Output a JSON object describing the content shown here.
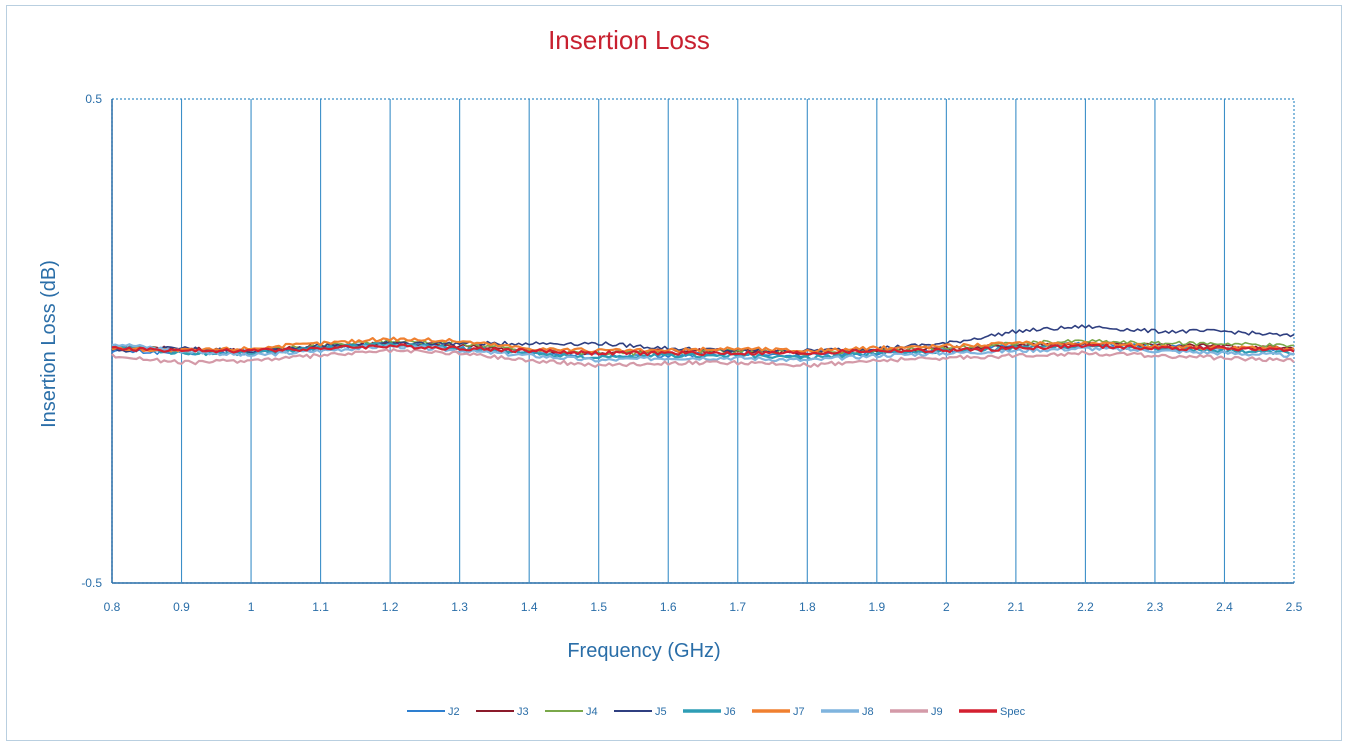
{
  "chart_data": {
    "type": "line",
    "title": "Insertion Loss",
    "xlabel": "Frequency (GHz)",
    "ylabel": "Insertion Loss (dB)",
    "xlim": [
      0.8,
      2.5
    ],
    "ylim": [
      -0.5,
      0.5
    ],
    "x_ticks": [
      "0.8",
      "0.9",
      "1",
      "1.1",
      "1.2",
      "1.3",
      "1.4",
      "1.5",
      "1.6",
      "1.7",
      "1.8",
      "1.9",
      "2",
      "2.1",
      "2.2",
      "2.3",
      "2.4",
      "2.5"
    ],
    "y_ticks": [
      "0.5",
      "-0.5"
    ],
    "grid": "vertical",
    "legend_position": "bottom",
    "x": [
      0.8,
      0.9,
      1.0,
      1.1,
      1.2,
      1.3,
      1.4,
      1.5,
      1.6,
      1.7,
      1.8,
      1.9,
      2.0,
      2.1,
      2.2,
      2.3,
      2.4,
      2.5
    ],
    "series": [
      {
        "name": "J2",
        "color": "#2e7fd0",
        "values": [
          -0.02,
          -0.025,
          -0.025,
          -0.015,
          -0.005,
          -0.015,
          -0.025,
          -0.03,
          -0.03,
          -0.025,
          -0.03,
          -0.025,
          -0.02,
          -0.01,
          -0.005,
          -0.01,
          -0.015,
          -0.02
        ]
      },
      {
        "name": "J3",
        "color": "#8b1a2a",
        "values": [
          -0.015,
          -0.015,
          -0.02,
          -0.01,
          -0.005,
          -0.01,
          -0.02,
          -0.025,
          -0.02,
          -0.02,
          -0.025,
          -0.02,
          -0.015,
          -0.01,
          -0.005,
          -0.01,
          -0.01,
          -0.015
        ]
      },
      {
        "name": "J4",
        "color": "#7aa84a",
        "values": [
          -0.01,
          -0.02,
          -0.02,
          -0.01,
          0.0,
          -0.005,
          -0.02,
          -0.025,
          -0.025,
          -0.02,
          -0.025,
          -0.02,
          -0.015,
          -0.005,
          0.0,
          -0.005,
          -0.005,
          -0.01
        ]
      },
      {
        "name": "J5",
        "color": "#2f3f80",
        "values": [
          -0.02,
          -0.015,
          -0.02,
          -0.01,
          -0.005,
          -0.005,
          -0.005,
          -0.005,
          -0.015,
          -0.02,
          -0.02,
          -0.015,
          -0.005,
          0.02,
          0.03,
          0.02,
          0.02,
          0.01
        ]
      },
      {
        "name": "J6",
        "color": "#2e9db5",
        "values": [
          -0.01,
          -0.025,
          -0.025,
          -0.015,
          -0.005,
          -0.015,
          -0.025,
          -0.035,
          -0.03,
          -0.03,
          -0.035,
          -0.025,
          -0.02,
          -0.015,
          -0.01,
          -0.015,
          -0.02,
          -0.025
        ]
      },
      {
        "name": "J7",
        "color": "#f08030",
        "values": [
          -0.015,
          -0.02,
          -0.015,
          -0.005,
          0.005,
          0.0,
          -0.015,
          -0.02,
          -0.02,
          -0.015,
          -0.02,
          -0.015,
          -0.01,
          -0.005,
          -0.005,
          -0.01,
          -0.015,
          -0.015
        ]
      },
      {
        "name": "J8",
        "color": "#7fb4de",
        "values": [
          -0.005,
          -0.02,
          -0.03,
          -0.02,
          -0.01,
          -0.02,
          -0.03,
          -0.04,
          -0.035,
          -0.035,
          -0.04,
          -0.03,
          -0.025,
          -0.02,
          -0.015,
          -0.02,
          -0.025,
          -0.03
        ]
      },
      {
        "name": "J9",
        "color": "#d49aa8",
        "values": [
          -0.03,
          -0.045,
          -0.04,
          -0.03,
          -0.02,
          -0.025,
          -0.04,
          -0.05,
          -0.045,
          -0.045,
          -0.05,
          -0.04,
          -0.035,
          -0.03,
          -0.025,
          -0.03,
          -0.035,
          -0.04
        ]
      },
      {
        "name": "Spec",
        "color": "#d42030",
        "values": [
          -0.015,
          -0.02,
          -0.02,
          -0.015,
          -0.01,
          -0.015,
          -0.02,
          -0.025,
          -0.025,
          -0.025,
          -0.025,
          -0.02,
          -0.02,
          -0.015,
          -0.01,
          -0.015,
          -0.015,
          -0.02
        ]
      }
    ]
  }
}
